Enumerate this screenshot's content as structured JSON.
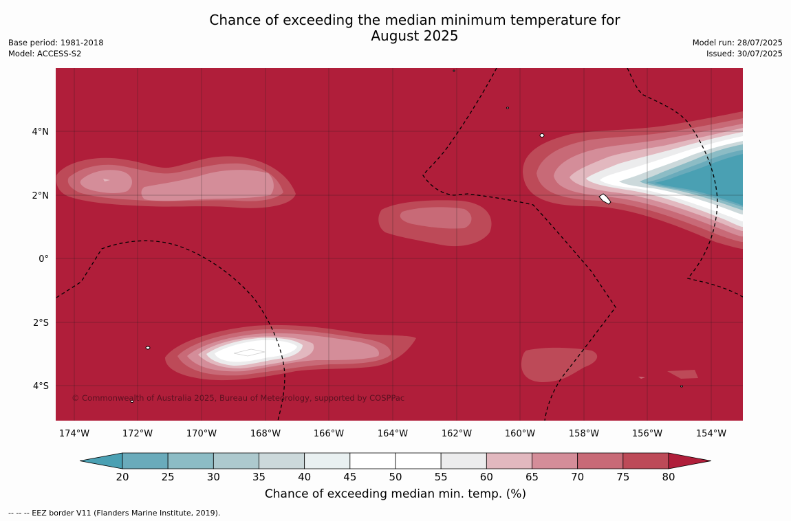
{
  "title_line1": "Chance of exceeding the median minimum temperature for",
  "title_line2": "August 2025",
  "base_period": "Base period: 1981-2018",
  "model": "Model: ACCESS-S2",
  "model_run": "Model run: 28/07/2025",
  "issued": "Issued: 30/07/2025",
  "credit": "© Commonwealth of Australia 2025, Bureau of Meteorology, supported by COSPPac",
  "footnote": "--  --  -- EEZ border V11 (Flanders Marine Institute, 2019).",
  "lat_labels": [
    "4°N",
    "2°N",
    "0°",
    "2°S",
    "4°S"
  ],
  "lon_labels": [
    "174°W",
    "172°W",
    "170°W",
    "168°W",
    "166°W",
    "164°W",
    "162°W",
    "160°W",
    "158°W",
    "156°W",
    "154°W"
  ],
  "colorbar": {
    "title": "Chance of exceeding median min. temp. (%)",
    "ticks": [
      "20",
      "25",
      "30",
      "35",
      "40",
      "45",
      "50",
      "55",
      "60",
      "65",
      "70",
      "75",
      "80"
    ],
    "colors": [
      "#4aa0b3",
      "#6aabbb",
      "#8cbcc5",
      "#adc9ce",
      "#ccd9db",
      "#e9f0f1",
      "#ffffff",
      "#ffffff",
      "#ececed",
      "#e2b8bf",
      "#d48d99",
      "#c86a77",
      "#bd4a58",
      "#b01e3a"
    ]
  },
  "colors": {
    "background_high": "#b01e3a",
    "low_core": "#4aa0b3"
  }
}
